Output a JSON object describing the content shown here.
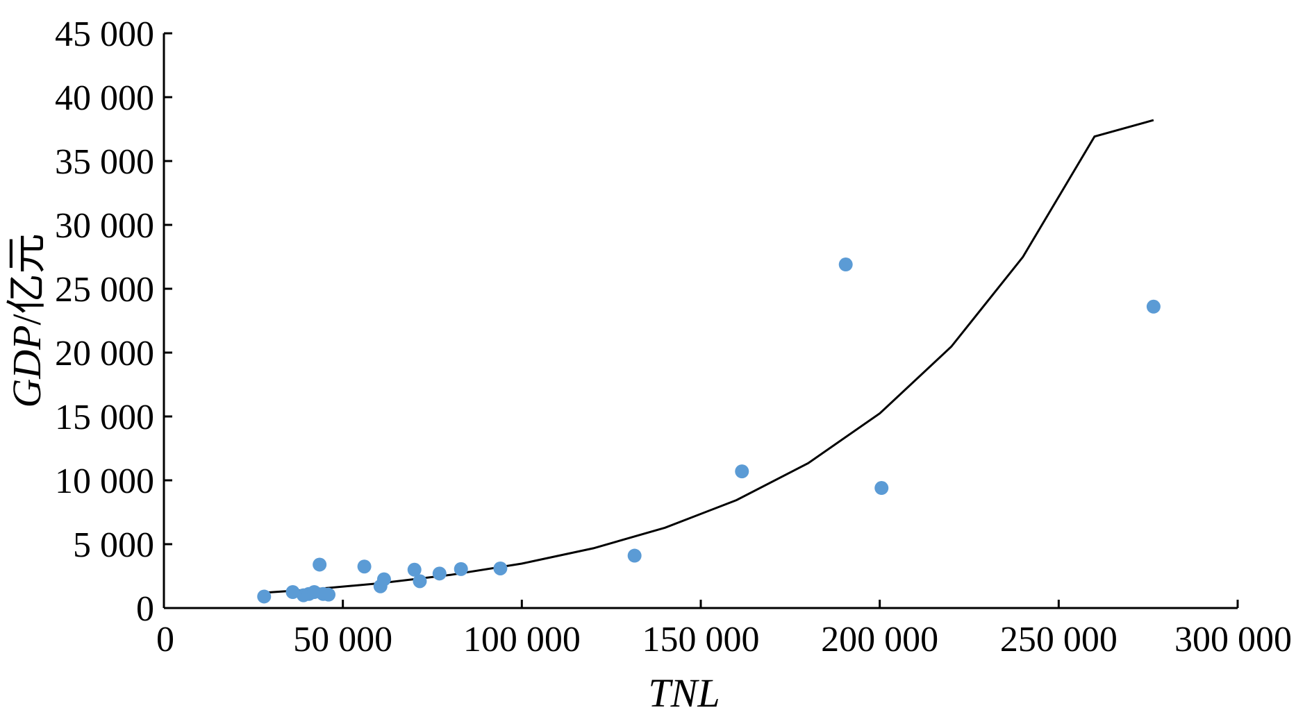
{
  "chart_data": {
    "type": "scatter",
    "xlabel": "TNL",
    "ylabel_italic": "GDP",
    "ylabel_suffix": "/亿元",
    "xlim": [
      0,
      300000
    ],
    "ylim": [
      0,
      45000
    ],
    "x_ticks": [
      0,
      50000,
      100000,
      150000,
      200000,
      250000,
      300000
    ],
    "x_tick_labels": [
      "0",
      "50 000",
      "100 000",
      "150 000",
      "200 000",
      "250 000",
      "300 000"
    ],
    "y_ticks": [
      0,
      5000,
      10000,
      15000,
      20000,
      25000,
      30000,
      35000,
      40000,
      45000
    ],
    "y_tick_labels": [
      "0",
      "5 000",
      "10 000",
      "15 000",
      "20 000",
      "25 000",
      "30 000",
      "35 000",
      "40 000",
      "45 000"
    ],
    "grid": false,
    "legend": "none",
    "series": [
      {
        "kind": "scatter",
        "color": "#5b9bd5",
        "points": [
          {
            "x": 28000,
            "y": 900
          },
          {
            "x": 36000,
            "y": 1250
          },
          {
            "x": 39000,
            "y": 1000
          },
          {
            "x": 40500,
            "y": 1100
          },
          {
            "x": 42000,
            "y": 1250
          },
          {
            "x": 43500,
            "y": 3400
          },
          {
            "x": 44500,
            "y": 1100
          },
          {
            "x": 46000,
            "y": 1050
          },
          {
            "x": 56000,
            "y": 3250
          },
          {
            "x": 60500,
            "y": 1700
          },
          {
            "x": 61500,
            "y": 2250
          },
          {
            "x": 70000,
            "y": 3000
          },
          {
            "x": 71500,
            "y": 2100
          },
          {
            "x": 77000,
            "y": 2700
          },
          {
            "x": 83000,
            "y": 3050
          },
          {
            "x": 94000,
            "y": 3100
          },
          {
            "x": 131500,
            "y": 4100
          },
          {
            "x": 161500,
            "y": 10700
          },
          {
            "x": 190500,
            "y": 26900
          },
          {
            "x": 200500,
            "y": 9400
          },
          {
            "x": 276500,
            "y": 23600
          }
        ]
      },
      {
        "kind": "line",
        "color": "#000000",
        "curve": [
          {
            "x": 28000,
            "y": 1200
          },
          {
            "x": 40000,
            "y": 1430
          },
          {
            "x": 60000,
            "y": 1930
          },
          {
            "x": 80000,
            "y": 2590
          },
          {
            "x": 100000,
            "y": 3480
          },
          {
            "x": 120000,
            "y": 4680
          },
          {
            "x": 140000,
            "y": 6290
          },
          {
            "x": 160000,
            "y": 8450
          },
          {
            "x": 180000,
            "y": 11340
          },
          {
            "x": 200000,
            "y": 15240
          },
          {
            "x": 220000,
            "y": 20470
          },
          {
            "x": 240000,
            "y": 27490
          },
          {
            "x": 260000,
            "y": 36920
          },
          {
            "x": 276500,
            "y": 38200
          }
        ]
      }
    ]
  }
}
